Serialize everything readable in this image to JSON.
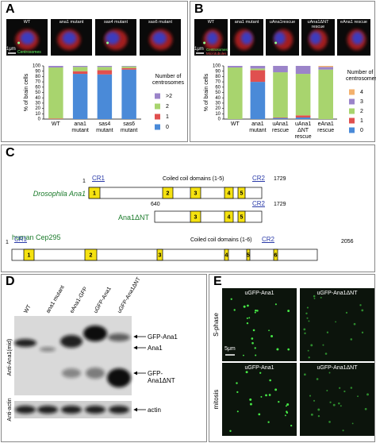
{
  "panel_labels": [
    "A",
    "B",
    "C",
    "D",
    "E"
  ],
  "panel_a_images": {
    "labels": [
      "WT",
      "ana1 mutant",
      "sas4 mutant",
      "sas6 mutant"
    ],
    "scale_bar": "1μm",
    "stain": "Centrosomes"
  },
  "panel_b_images": {
    "labels": [
      "WT",
      "ana1 mutant",
      "uAna1rescue",
      "uAna1ΔNT rescue",
      "eAna1 rescue"
    ],
    "scale_bar": "1μm",
    "stains": [
      "Centrosomes",
      "Microtubules"
    ]
  },
  "chart_data": [
    {
      "type": "bar",
      "stacked": true,
      "y_label": "% of brain cells",
      "legend_title": "Number of centrosomes",
      "categories": [
        "WT",
        "ana1 mutant",
        "sas4 mutant",
        "sas6 mutant"
      ],
      "series": [
        {
          "name": "0",
          "color": "#4a8ad8",
          "values": [
            0,
            85,
            84,
            93
          ]
        },
        {
          "name": "1",
          "color": "#e0504f",
          "values": [
            1,
            5,
            8,
            3
          ]
        },
        {
          "name": "2",
          "color": "#a8d46e",
          "values": [
            96,
            8,
            6,
            3
          ]
        },
        {
          "name": ">2",
          "color": "#9b84c9",
          "values": [
            3,
            2,
            2,
            1
          ]
        }
      ],
      "ylim": [
        0,
        100
      ],
      "yticks": [
        0,
        10,
        20,
        30,
        40,
        50,
        60,
        70,
        80,
        90,
        100
      ]
    },
    {
      "type": "bar",
      "stacked": true,
      "y_label": "% of brain cells",
      "legend_title": "Number of centrosomes",
      "categories": [
        "WT",
        "ana1 mutant",
        "uAna1 rescue",
        "uAna1 ΔNT rescue",
        "eAna1 rescue"
      ],
      "series": [
        {
          "name": "0",
          "color": "#4a8ad8",
          "values": [
            0,
            70,
            2,
            3,
            0
          ]
        },
        {
          "name": "1",
          "color": "#e0504f",
          "values": [
            0,
            22,
            1,
            4,
            0
          ]
        },
        {
          "name": "2",
          "color": "#a8d46e",
          "values": [
            97,
            3,
            85,
            78,
            93
          ]
        },
        {
          "name": "3",
          "color": "#9b84c9",
          "values": [
            3,
            5,
            12,
            15,
            5
          ]
        },
        {
          "name": "4",
          "color": "#f3b16e",
          "values": [
            0,
            0,
            0,
            0,
            2
          ]
        }
      ],
      "ylim": [
        0,
        100
      ],
      "yticks": [
        0,
        10,
        20,
        30,
        40,
        50,
        60,
        70,
        80,
        90,
        100
      ]
    }
  ],
  "domain_diagram": {
    "proteins": [
      {
        "name": "Drosophila Ana1",
        "start": 1,
        "end": 1729,
        "cr1": "CR1",
        "cr2": "CR2",
        "caption": "Coiled coil domains (1-5)",
        "domains": [
          1,
          2,
          3,
          4,
          5
        ]
      },
      {
        "name": "Ana1ΔNT",
        "start": 640,
        "end": 1729,
        "cr2": "CR2",
        "domains": [
          3,
          4,
          5
        ]
      },
      {
        "name": "human Cep295",
        "start": 1,
        "end": 2056,
        "cr1": "CR1",
        "cr2": "CR2",
        "caption": "Coiled coil domains (1-6)",
        "domains": [
          1,
          2,
          3,
          4,
          5,
          6
        ]
      }
    ]
  },
  "western_blot": {
    "lanes": [
      "WT",
      "ana1 mutant",
      "eAna1-GFP",
      "uGFP-Ana1",
      "uGFP-Ana1ΔNT"
    ],
    "bands": [
      "GFP-Ana1",
      "Ana1",
      "GFP-Ana1ΔNT",
      "actin"
    ],
    "antibodies": [
      "Anti-Ana1(mid)",
      "Anti-actin"
    ]
  },
  "panel_e": {
    "columns": [
      "uGFP-Ana1",
      "uGFP-Ana1ΔNT"
    ],
    "rows": [
      "S-phase",
      "mitosis"
    ],
    "scale_bar": "5μm"
  }
}
